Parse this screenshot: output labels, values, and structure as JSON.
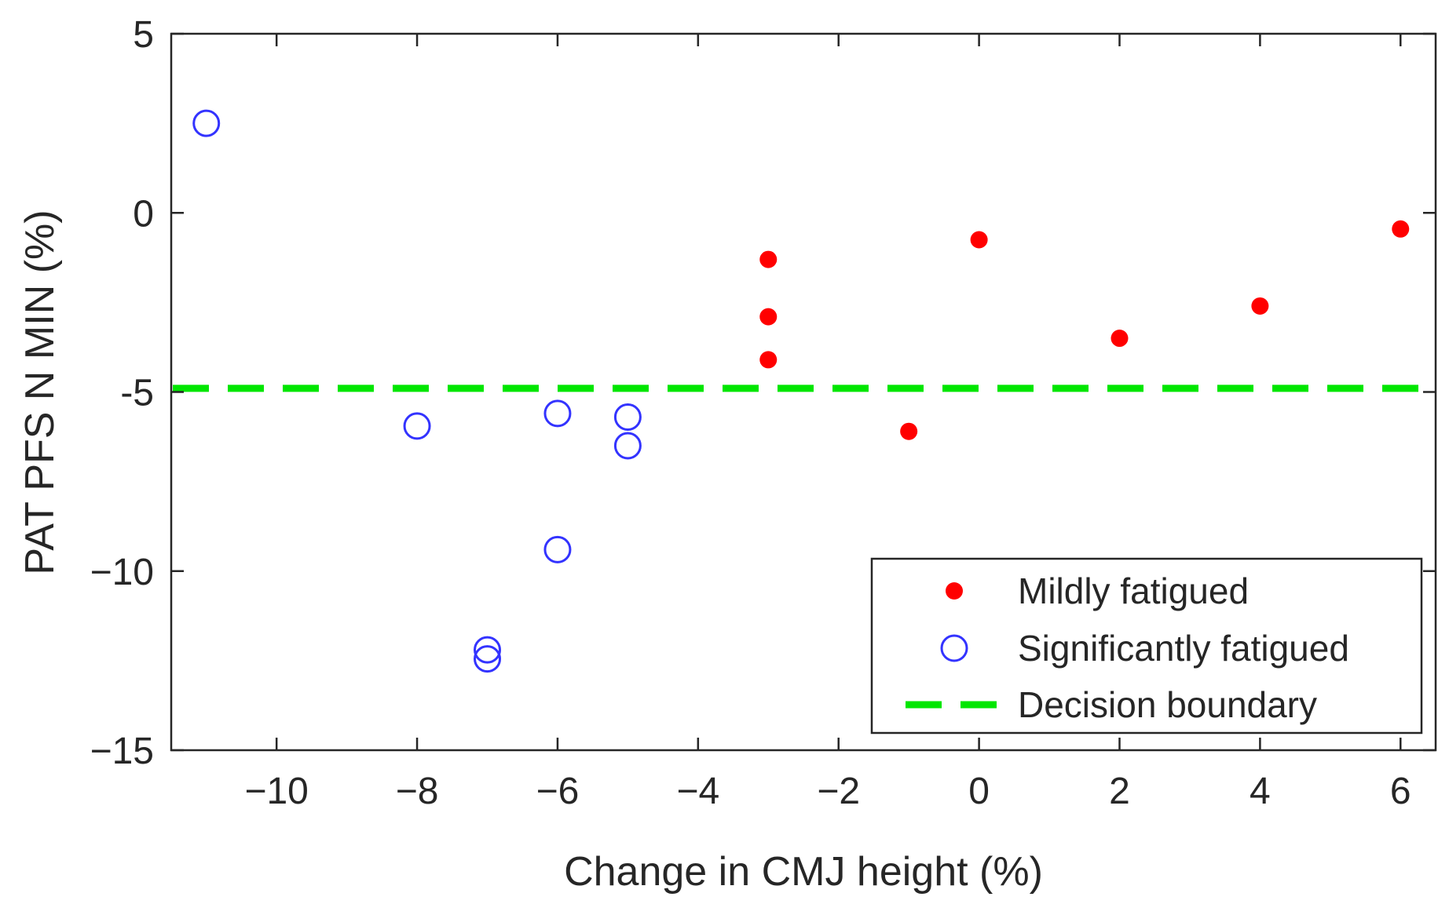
{
  "chart_data": {
    "type": "scatter",
    "title": "",
    "xlabel": "Change in CMJ height (%)",
    "ylabel": "PAT PFS N MIN (%)",
    "xlim": [
      -11.5,
      6.5
    ],
    "ylim": [
      -15,
      5
    ],
    "x_ticks": [
      -10,
      -8,
      -6,
      -4,
      -2,
      0,
      2,
      4,
      6
    ],
    "x_tick_labels": [
      "−10",
      "−8",
      "−6",
      "−4",
      "−2",
      "0",
      "2",
      "4",
      "6"
    ],
    "y_ticks": [
      -15,
      -10,
      -5,
      0,
      5
    ],
    "y_tick_labels": [
      "−15",
      "−10",
      "-5",
      "0",
      "5"
    ],
    "grid": false,
    "legend_position": "bottom-right",
    "series": [
      {
        "name": "Mildly fatigued",
        "marker": "filled-dot",
        "color": "#ff0000",
        "points": [
          {
            "x": -3,
            "y": -1.3
          },
          {
            "x": -3,
            "y": -2.9
          },
          {
            "x": -3,
            "y": -4.1
          },
          {
            "x": -1,
            "y": -6.1
          },
          {
            "x": 0,
            "y": -0.75
          },
          {
            "x": 2,
            "y": -3.5
          },
          {
            "x": 4,
            "y": -2.6
          },
          {
            "x": 6,
            "y": -0.45
          }
        ]
      },
      {
        "name": "Significantly fatigued",
        "marker": "open-circle",
        "color": "#3333ff",
        "points": [
          {
            "x": -11,
            "y": 2.5
          },
          {
            "x": -8,
            "y": -5.95
          },
          {
            "x": -7,
            "y": -12.2
          },
          {
            "x": -7,
            "y": -12.45
          },
          {
            "x": -6,
            "y": -5.6
          },
          {
            "x": -6,
            "y": -9.4
          },
          {
            "x": -5,
            "y": -5.7
          },
          {
            "x": -5,
            "y": -6.5
          }
        ]
      }
    ],
    "lines": [
      {
        "name": "Decision boundary",
        "style": "dashed",
        "color": "#00e600",
        "y": -4.9
      }
    ]
  }
}
